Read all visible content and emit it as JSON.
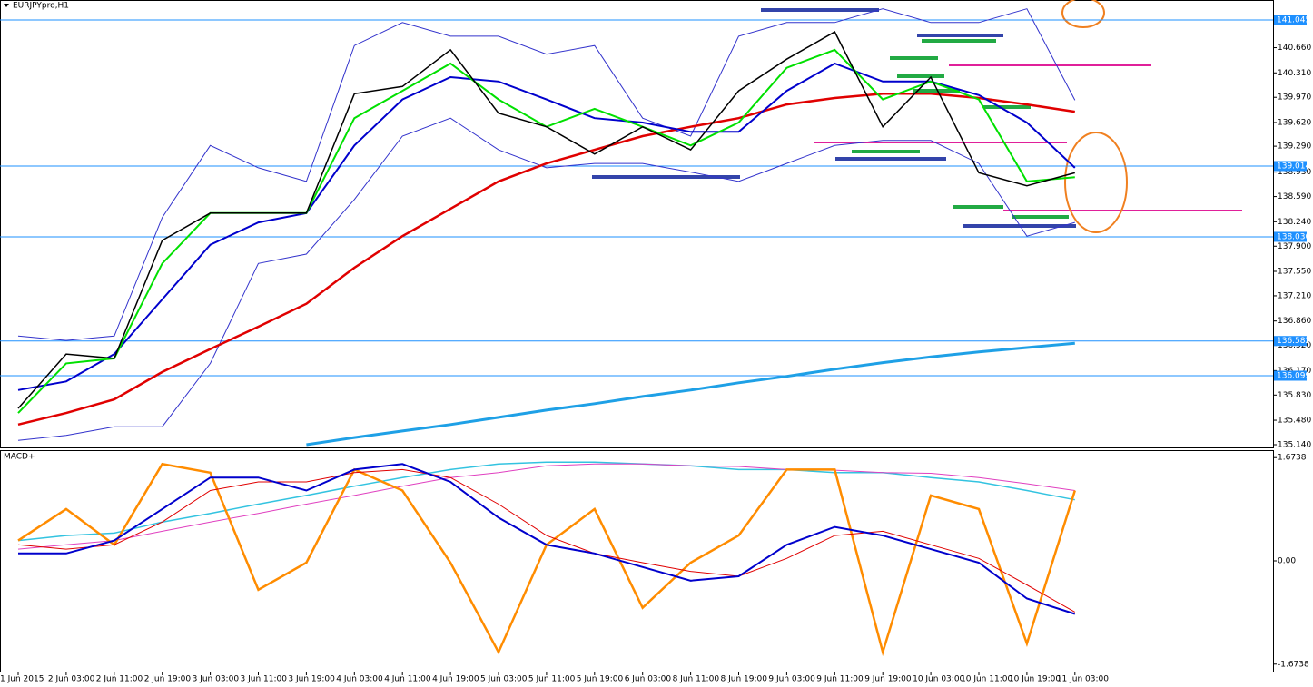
{
  "chart_data": [
    {
      "type": "line",
      "title": "EURJPYpro,H1",
      "categories": [
        "1 Jun 2015",
        "2 Jun 03:00",
        "2 Jun 11:00",
        "2 Jun 19:00",
        "3 Jun 03:00",
        "3 Jun 11:00",
        "3 Jun 19:00",
        "4 Jun 03:00",
        "4 Jun 11:00",
        "4 Jun 19:00",
        "5 Jun 03:00",
        "5 Jun 11:00",
        "5 Jun 19:00",
        "6 Jun 03:00",
        "8 Jun 11:00",
        "8 Jun 19:00",
        "9 Jun 03:00",
        "9 Jun 11:00",
        "9 Jun 19:00",
        "10 Jun 03:00",
        "10 Jun 11:00",
        "10 Jun 19:00",
        "11 Jun 03:00"
      ],
      "ylim": [
        135.102,
        141.323
      ],
      "yticks": [
        {
          "value": 140.66,
          "label": "140.660"
        },
        {
          "value": 140.31,
          "label": "140.310"
        },
        {
          "value": 139.97,
          "label": "139.970"
        },
        {
          "value": 139.62,
          "label": "139.620"
        },
        {
          "value": 139.29,
          "label": "139.290"
        },
        {
          "value": 138.93,
          "label": "138.930"
        },
        {
          "value": 138.59,
          "label": "138.590"
        },
        {
          "value": 138.24,
          "label": "138.240"
        },
        {
          "value": 137.9,
          "label": "137.900"
        },
        {
          "value": 137.55,
          "label": "137.550"
        },
        {
          "value": 137.21,
          "label": "137.210"
        },
        {
          "value": 136.86,
          "label": "136.860"
        },
        {
          "value": 136.52,
          "label": "136.520"
        },
        {
          "value": 136.17,
          "label": "136.170"
        },
        {
          "value": 135.83,
          "label": "135.830"
        },
        {
          "value": 135.48,
          "label": "135.480"
        },
        {
          "value": 135.14,
          "label": "135.140"
        }
      ],
      "levels": [
        141.045,
        139.014,
        {
          "value": 138.03,
          "label": "138.030"
        },
        136.582,
        136.099
      ],
      "level_color": "#1e90ff",
      "series": [
        {
          "color": "#3333cc",
          "width": 1,
          "values": [
            136.65,
            136.59,
            136.65,
            138.3,
            139.3,
            138.99,
            138.8,
            140.69,
            141.01,
            140.82,
            140.82,
            140.57,
            140.69,
            139.68,
            139.43,
            140.82,
            141.01,
            141.01,
            141.2,
            141.01,
            141.01,
            141.2,
            139.93
          ]
        },
        {
          "color": "#3333cc",
          "width": 1,
          "values": [
            135.2,
            135.27,
            135.39,
            135.39,
            136.27,
            137.66,
            137.79,
            138.55,
            139.43,
            139.68,
            139.24,
            138.99,
            139.05,
            139.05,
            138.93,
            138.8,
            139.05,
            139.3,
            139.37,
            139.37,
            139.05,
            138.04,
            138.23
          ]
        },
        {
          "color": "#1ea0e6",
          "width": 3,
          "values": [
            null,
            null,
            null,
            null,
            null,
            null,
            135.14,
            135.24,
            135.33,
            135.42,
            135.52,
            135.62,
            135.71,
            135.81,
            135.9,
            136.0,
            136.09,
            136.19,
            136.28,
            136.36,
            136.43,
            136.49,
            136.55
          ]
        },
        {
          "color": "#e00000",
          "width": 2.5,
          "values": [
            135.42,
            135.58,
            135.77,
            136.15,
            136.47,
            136.78,
            137.1,
            137.6,
            138.04,
            138.42,
            138.8,
            139.05,
            139.24,
            139.43,
            139.56,
            139.68,
            139.87,
            139.96,
            140.02,
            140.02,
            139.96,
            139.87,
            139.77
          ]
        },
        {
          "color": "#0000cc",
          "width": 2,
          "values": [
            135.9,
            136.02,
            136.4,
            137.16,
            137.92,
            138.23,
            138.36,
            139.3,
            139.94,
            140.25,
            140.19,
            139.94,
            139.68,
            139.62,
            139.49,
            139.49,
            140.06,
            140.44,
            140.19,
            140.19,
            140.0,
            139.62,
            138.99
          ]
        },
        {
          "color": "#00e000",
          "width": 2,
          "values": [
            135.58,
            136.27,
            136.34,
            137.66,
            138.36,
            138.36,
            138.36,
            139.68,
            140.06,
            140.44,
            139.94,
            139.56,
            139.81,
            139.56,
            139.3,
            139.62,
            140.38,
            140.63,
            139.94,
            140.19,
            139.94,
            138.8,
            138.86
          ]
        },
        {
          "color": "#000000",
          "width": 1.5,
          "values": [
            135.645,
            136.4,
            136.34,
            137.98,
            138.36,
            138.36,
            138.36,
            140.02,
            140.12,
            140.63,
            139.75,
            139.56,
            139.18,
            139.56,
            139.24,
            140.06,
            140.5,
            140.88,
            139.56,
            140.25,
            138.92,
            138.74,
            138.92
          ]
        }
      ]
    },
    {
      "type": "line",
      "title": "MACD+",
      "ylim": [
        -1.78,
        1.78
      ],
      "yticks": [
        1.6738,
        {
          "value": 0,
          "label": "0.00"
        },
        -1.6738
      ],
      "series": [
        {
          "color": "#33c3e0",
          "width": 1.5,
          "values": [
            0.33,
            0.41,
            0.45,
            0.63,
            0.77,
            0.92,
            1.06,
            1.21,
            1.35,
            1.48,
            1.57,
            1.6,
            1.6,
            1.57,
            1.54,
            1.48,
            1.48,
            1.43,
            1.43,
            1.35,
            1.28,
            1.14,
            0.99
          ]
        },
        {
          "color": "#e040c0",
          "width": 1,
          "values": [
            0.19,
            0.26,
            0.33,
            0.48,
            0.63,
            0.77,
            0.92,
            1.06,
            1.21,
            1.35,
            1.43,
            1.54,
            1.57,
            1.57,
            1.54,
            1.53,
            1.48,
            1.47,
            1.43,
            1.42,
            1.35,
            1.25,
            1.14
          ]
        },
        {
          "color": "#ff8c00",
          "width": 2.5,
          "values": [
            0.33,
            0.84,
            0.26,
            1.57,
            1.43,
            -0.47,
            -0.03,
            1.48,
            1.14,
            -0.03,
            -1.48,
            0.26,
            0.84,
            -0.76,
            -0.03,
            0.41,
            1.48,
            1.48,
            -1.48,
            1.06,
            0.84,
            -1.34,
            1.14
          ]
        },
        {
          "color": "#e00000",
          "width": 1,
          "values": [
            0.26,
            0.19,
            0.26,
            0.63,
            1.14,
            1.28,
            1.28,
            1.43,
            1.48,
            1.35,
            0.92,
            0.41,
            0.12,
            -0.03,
            -0.17,
            -0.25,
            0.04,
            0.41,
            0.48,
            0.26,
            0.04,
            -0.39,
            -0.83
          ]
        },
        {
          "color": "#0000cc",
          "width": 2,
          "values": [
            0.12,
            0.12,
            0.33,
            0.84,
            1.35,
            1.35,
            1.14,
            1.48,
            1.57,
            1.28,
            0.7,
            0.26,
            0.12,
            -0.1,
            -0.32,
            -0.25,
            0.26,
            0.55,
            0.41,
            0.19,
            -0.03,
            -0.61,
            -0.86
          ]
        }
      ]
    }
  ]
}
